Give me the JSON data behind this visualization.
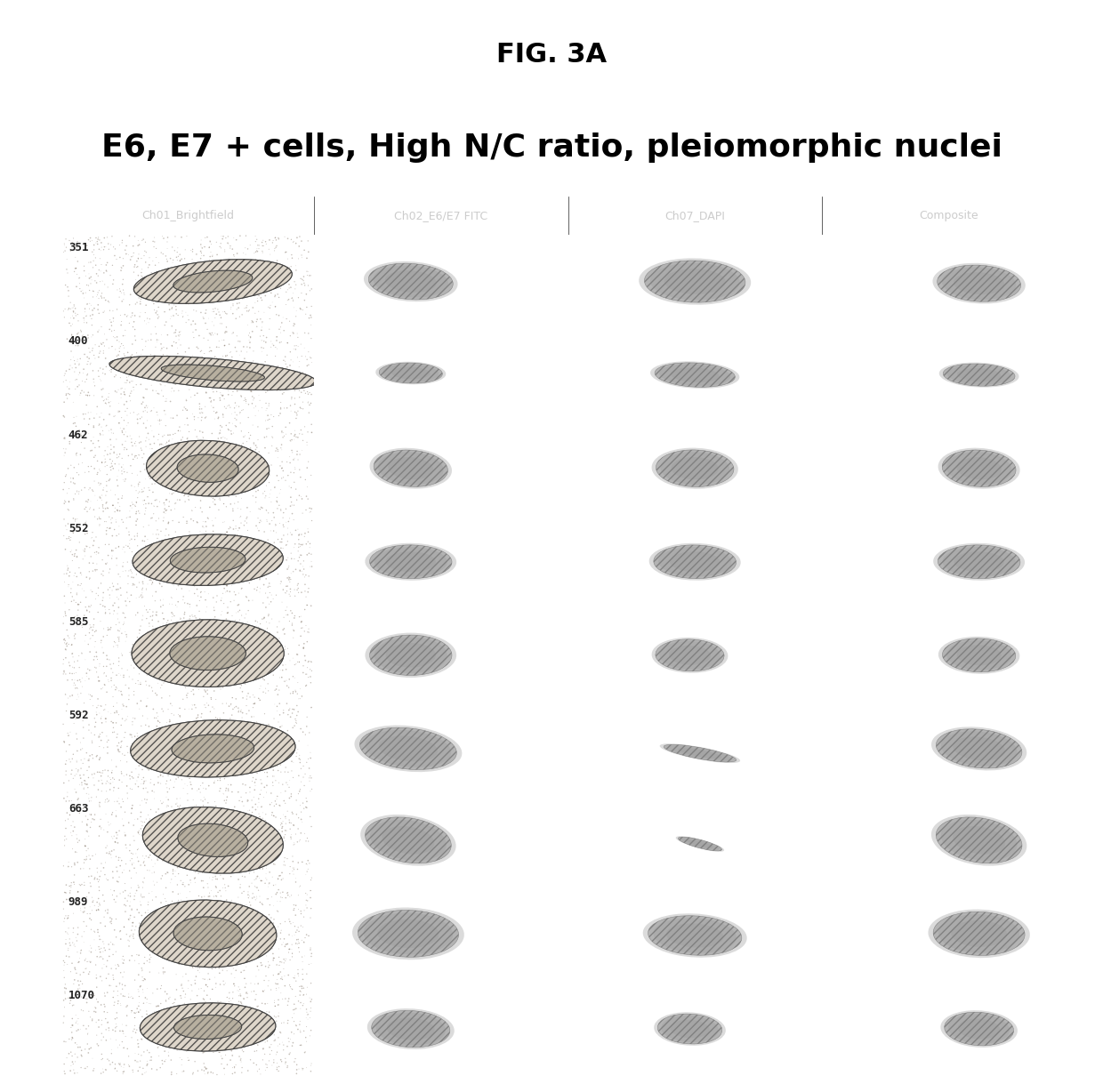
{
  "fig_title": "FIG. 3A",
  "subtitle": "E6, E7 + cells, High N/C ratio, pleiomorphic nuclei",
  "col_headers": [
    "Ch01_Brightfield",
    "Ch02_E6/E7 FITC",
    "Ch07_DAPI",
    "Composite"
  ],
  "row_labels": [
    "351",
    "400",
    "462",
    "552",
    "585",
    "592",
    "663",
    "989",
    "1070"
  ],
  "n_rows": 9,
  "n_cols": 4,
  "bg_color": "#ffffff",
  "header_bg": "#4a4a4a",
  "header_text": "#cccccc",
  "col0_bg": "#b8a898",
  "other_bg": "#000000",
  "fig_title_fontsize": 22,
  "subtitle_fontsize": 26,
  "header_fontsize": 9,
  "label_fontsize": 9,
  "cell_shapes": {
    "0": {
      "0": [
        [
          0.6,
          0.5,
          0.22,
          0.14,
          25
        ]
      ],
      "1": [
        [
          0.38,
          0.5,
          0.18,
          0.22,
          20
        ]
      ],
      "2": [
        [
          0.5,
          0.5,
          0.22,
          0.25,
          10
        ]
      ],
      "3": [
        [
          0.62,
          0.48,
          0.18,
          0.22,
          15
        ]
      ]
    },
    "1": {
      "0": [
        [
          0.6,
          0.52,
          0.28,
          0.1,
          -15
        ]
      ],
      "1": [
        [
          0.38,
          0.52,
          0.14,
          0.12,
          -15
        ]
      ],
      "2": [
        [
          0.5,
          0.5,
          0.18,
          0.14,
          -20
        ]
      ],
      "3": [
        [
          0.62,
          0.5,
          0.16,
          0.13,
          -18
        ]
      ]
    },
    "2": {
      "0": [
        [
          0.58,
          0.5,
          0.16,
          0.2,
          10
        ]
      ],
      "1": [
        [
          0.38,
          0.5,
          0.16,
          0.22,
          10
        ]
      ],
      "2": [
        [
          0.5,
          0.5,
          0.17,
          0.22,
          5
        ]
      ],
      "3": [
        [
          0.62,
          0.5,
          0.16,
          0.22,
          8
        ]
      ]
    },
    "3": {
      "0": [
        [
          0.58,
          0.52,
          0.2,
          0.18,
          20
        ]
      ],
      "1": [
        [
          0.38,
          0.5,
          0.18,
          0.2,
          5
        ]
      ],
      "2": [
        [
          0.5,
          0.5,
          0.18,
          0.2,
          10
        ]
      ],
      "3": [
        [
          0.62,
          0.5,
          0.18,
          0.2,
          8
        ]
      ]
    },
    "4": {
      "0": [
        [
          0.58,
          0.52,
          0.2,
          0.24,
          0
        ]
      ],
      "1": [
        [
          0.38,
          0.5,
          0.18,
          0.24,
          0
        ]
      ],
      "2": [
        [
          0.48,
          0.5,
          0.15,
          0.19,
          5
        ]
      ],
      "3": [
        [
          0.62,
          0.5,
          0.16,
          0.2,
          5
        ]
      ]
    },
    "5": {
      "0": [
        [
          0.6,
          0.5,
          0.22,
          0.2,
          25
        ]
      ],
      "1": [
        [
          0.37,
          0.5,
          0.2,
          0.26,
          25
        ]
      ],
      "2": [
        [
          0.52,
          0.45,
          0.06,
          0.18,
          60
        ]
      ],
      "3": [
        [
          0.62,
          0.5,
          0.18,
          0.24,
          20
        ]
      ]
    },
    "6": {
      "0": [
        [
          0.6,
          0.52,
          0.18,
          0.24,
          15
        ]
      ],
      "1": [
        [
          0.37,
          0.52,
          0.18,
          0.28,
          15
        ]
      ],
      "2": [
        [
          0.52,
          0.48,
          0.04,
          0.12,
          50
        ]
      ],
      "3": [
        [
          0.62,
          0.52,
          0.18,
          0.28,
          15
        ]
      ]
    },
    "7": {
      "0": [
        [
          0.58,
          0.52,
          0.18,
          0.24,
          5
        ]
      ],
      "1": [
        [
          0.37,
          0.52,
          0.22,
          0.28,
          5
        ]
      ],
      "2": [
        [
          0.5,
          0.5,
          0.2,
          0.24,
          20
        ]
      ],
      "3": [
        [
          0.62,
          0.52,
          0.2,
          0.26,
          5
        ]
      ]
    },
    "8": {
      "0": [
        [
          0.58,
          0.52,
          0.18,
          0.17,
          25
        ]
      ],
      "1": [
        [
          0.38,
          0.5,
          0.17,
          0.22,
          10
        ]
      ],
      "2": [
        [
          0.48,
          0.5,
          0.14,
          0.18,
          10
        ]
      ],
      "3": [
        [
          0.62,
          0.5,
          0.15,
          0.2,
          10
        ]
      ]
    }
  }
}
